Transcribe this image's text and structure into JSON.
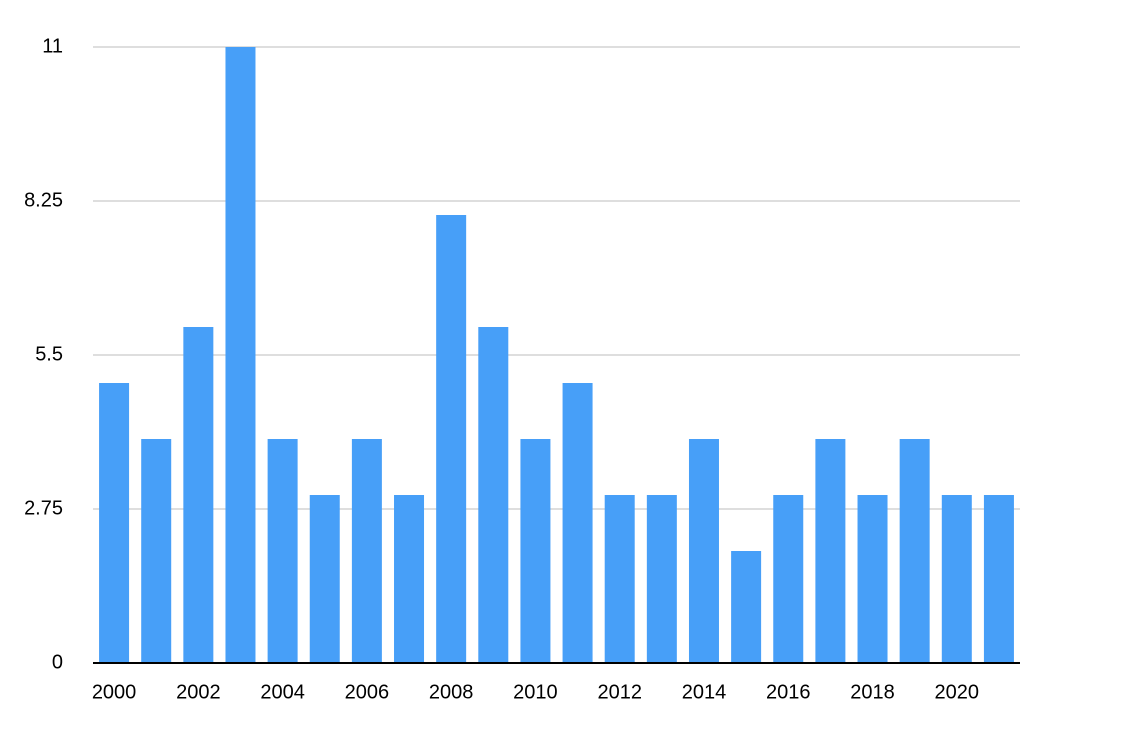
{
  "chart_data": {
    "type": "bar",
    "categories": [
      "2000",
      null,
      "2002",
      null,
      "2004",
      null,
      "2006",
      null,
      "2008",
      null,
      "2010",
      null,
      "2012",
      null,
      "2014",
      null,
      "2016",
      null,
      "2018",
      null,
      "2020",
      null
    ],
    "values": [
      5,
      4,
      6,
      11,
      4,
      3,
      4,
      3,
      8,
      6,
      4,
      5,
      3,
      3,
      4,
      2,
      3,
      4,
      3,
      4,
      3,
      3
    ],
    "color": "#479ff8",
    "ylim": [
      0,
      11
    ],
    "yticks": [
      0,
      2.75,
      5.5,
      8.25,
      11
    ],
    "grid": true
  }
}
